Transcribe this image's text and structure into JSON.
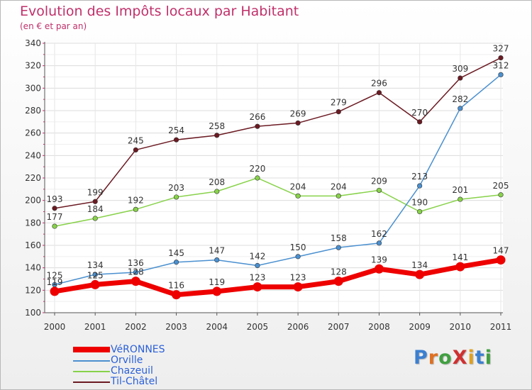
{
  "header": {
    "title": "Evolution des Impôts locaux par Habitant",
    "subtitle": "(en € et par an)"
  },
  "logo": {
    "text": "ProXiti",
    "letters": [
      {
        "ch": "P",
        "color": "#3b7fd0"
      },
      {
        "ch": "r",
        "color": "#e07020"
      },
      {
        "ch": "o",
        "color": "#40a040"
      },
      {
        "ch": "X",
        "color": "#d03030"
      },
      {
        "ch": "i",
        "color": "#e0a020"
      },
      {
        "ch": "t",
        "color": "#3b7fd0"
      },
      {
        "ch": "i",
        "color": "#40a040"
      }
    ]
  },
  "chart_data": {
    "type": "line",
    "title": "Evolution des Impôts locaux par Habitant",
    "subtitle": "(en € et par an)",
    "xlabel": "",
    "ylabel": "",
    "categories": [
      "2000",
      "2001",
      "2002",
      "2003",
      "2004",
      "2005",
      "2006",
      "2007",
      "2008",
      "2009",
      "2010",
      "2011"
    ],
    "ylim": [
      100,
      340
    ],
    "yticks": [
      100,
      120,
      140,
      160,
      180,
      200,
      220,
      240,
      260,
      280,
      300,
      320,
      340
    ],
    "grid": true,
    "legend_position": "bottom-left",
    "series": [
      {
        "name": "Til-Châtel",
        "color": "#6b1a22",
        "values": [
          193,
          199,
          245,
          254,
          258,
          266,
          269,
          279,
          296,
          270,
          309,
          327
        ]
      },
      {
        "name": "Chazeuil",
        "color": "#88d24a",
        "values": [
          177,
          184,
          192,
          203,
          208,
          220,
          204,
          204,
          209,
          190,
          201,
          205
        ]
      },
      {
        "name": "Orville",
        "color": "#4a90d0",
        "values": [
          125,
          134,
          136,
          145,
          147,
          142,
          150,
          158,
          162,
          213,
          282,
          312
        ]
      },
      {
        "name": "VéRONNES",
        "color": "#ee0000",
        "values": [
          119,
          125,
          128,
          116,
          119,
          123,
          123,
          128,
          139,
          134,
          141,
          147
        ]
      }
    ],
    "legend_order": [
      "VéRONNES",
      "Orville",
      "Chazeuil",
      "Til-Châtel"
    ]
  }
}
